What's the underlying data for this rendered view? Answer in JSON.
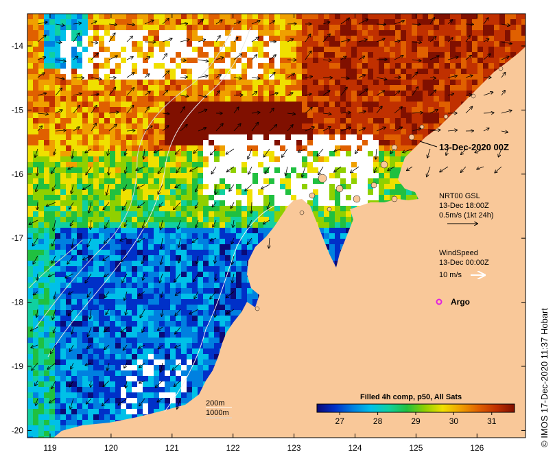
{
  "map": {
    "title_date": "13-Dec-2020 00Z",
    "lon_ticks": [
      "119",
      "120",
      "121",
      "122",
      "123",
      "124",
      "125",
      "126"
    ],
    "lat_ticks": [
      "-14",
      "-15",
      "-16",
      "-17",
      "-18",
      "-19",
      "-20"
    ],
    "currents_legend": {
      "source": "NRT00 GSL",
      "time": "13-Dec 18:00Z",
      "scale": "0.5m/s (1kt 24h)"
    },
    "wind_legend": {
      "label": "WindSpeed",
      "time": "13-Dec 00:00Z",
      "scale": "10 m/s"
    },
    "argo_label": "Argo",
    "isobaths": [
      "200m",
      "1000m"
    ],
    "colorbar": {
      "title": "Filled 4h comp, p50, All Sats",
      "tick_labels": [
        "27",
        "28",
        "29",
        "30",
        "31"
      ],
      "colors": [
        "#0a0a78",
        "#0030c8",
        "#0080e0",
        "#00c0e8",
        "#10d0a0",
        "#20c040",
        "#90d000",
        "#f0e000",
        "#f0a000",
        "#e06000",
        "#c03000",
        "#801000"
      ]
    },
    "credit": "© IMOS 17-Dec-2020 11:37 Hobart",
    "colors": {
      "land": "#f9c899",
      "no_data": "#ffffff",
      "argo": "#e020e0"
    }
  }
}
